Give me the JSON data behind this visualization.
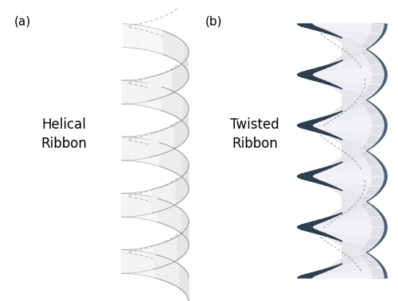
{
  "fig_width": 5.0,
  "fig_height": 3.79,
  "dpi": 100,
  "background": "#ffffff",
  "label_a": "(a)",
  "label_b": "(b)",
  "text_helical": "Helical\nRibbon",
  "text_twisted": "Twisted\nRibbon",
  "label_fontsize": 11,
  "text_fontsize": 12,
  "edge_color": "#888888",
  "dark_ribbon_color": "#2c3e50",
  "ribbon_fill_light": "#f8f9fa",
  "ribbon_fill_mid": "#e8ecf0",
  "n_turns_helical": 4.5,
  "n_turns_twisted": 2.5,
  "n_points": 2000
}
